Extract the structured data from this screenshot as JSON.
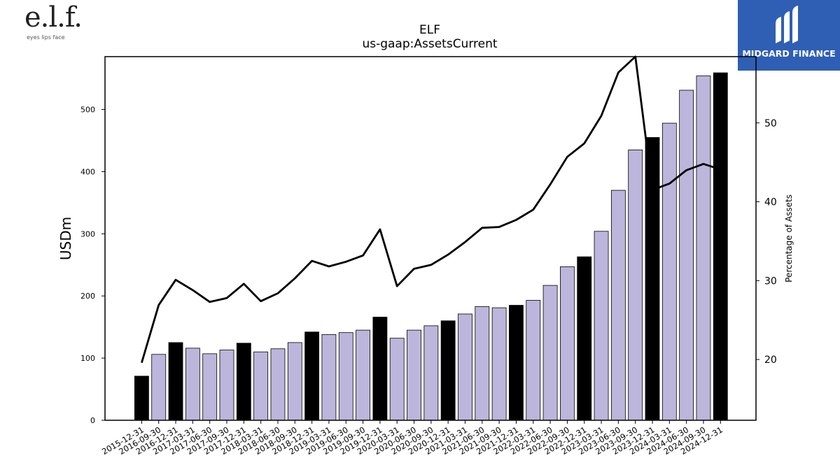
{
  "brand": {
    "logo_text": "e.l.f.",
    "tagline": "eyes lips face"
  },
  "sponsor": {
    "name": "MIDGARD FINANCE",
    "background": "#2f5fb4"
  },
  "chart_data": {
    "type": "bar",
    "title": "ELF",
    "subtitle": "us-gaap:AssetsCurrent",
    "ylabel": "USDm",
    "y2label": "Percentage of Assets",
    "ylim": [
      0,
      585
    ],
    "y2lim": [
      12.3,
      58.4
    ],
    "yticks": [
      0,
      100,
      200,
      300,
      400,
      500
    ],
    "y2ticks": [
      20,
      30,
      40,
      50
    ],
    "categories": [
      "2015-12-31",
      "2016-09-30",
      "2016-12-31",
      "2017-03-31",
      "2017-06-30",
      "2017-09-30",
      "2017-12-31",
      "2018-03-31",
      "2018-06-30",
      "2018-09-30",
      "2018-12-31",
      "2019-03-31",
      "2019-06-30",
      "2019-09-30",
      "2019-12-31",
      "2020-03-31",
      "2020-06-30",
      "2020-09-30",
      "2020-12-31",
      "2021-03-31",
      "2021-06-30",
      "2021-09-30",
      "2021-12-31",
      "2022-03-31",
      "2022-06-30",
      "2022-09-30",
      "2022-12-31",
      "2023-03-31",
      "2023-06-30",
      "2023-09-30",
      "2023-12-31",
      "2024-03-31",
      "2024-06-30",
      "2024-09-30",
      "2024-12-31"
    ],
    "series": [
      {
        "kind": "bar",
        "values": [
          71,
          106,
          125,
          116,
          107,
          113,
          124,
          110,
          115,
          125,
          142,
          138,
          141,
          145,
          166,
          132,
          145,
          152,
          160,
          171,
          183,
          181,
          185,
          193,
          217,
          247,
          263,
          304,
          370,
          435,
          455,
          478,
          531,
          554,
          559
        ],
        "colors": {
          "annual": "#000000",
          "quarterly": "#bcb6dc"
        },
        "annual_flags": [
          1,
          0,
          1,
          0,
          0,
          0,
          1,
          0,
          0,
          0,
          1,
          0,
          0,
          0,
          1,
          0,
          0,
          0,
          1,
          0,
          0,
          0,
          1,
          0,
          0,
          0,
          1,
          0,
          0,
          0,
          1,
          0,
          0,
          0,
          1
        ]
      },
      {
        "kind": "line",
        "axis": "right",
        "color": "#000000",
        "values": [
          19.6,
          26.9,
          30.1,
          28.8,
          27.3,
          27.8,
          29.6,
          27.4,
          28.4,
          30.3,
          32.5,
          31.8,
          32.4,
          33.2,
          36.5,
          29.3,
          31.5,
          32.0,
          33.3,
          34.9,
          36.7,
          36.8,
          37.7,
          39.0,
          42.2,
          45.7,
          47.4,
          50.9,
          56.4,
          58.4,
          41.5,
          42.3,
          44.0,
          44.8,
          44.1
        ]
      }
    ]
  }
}
